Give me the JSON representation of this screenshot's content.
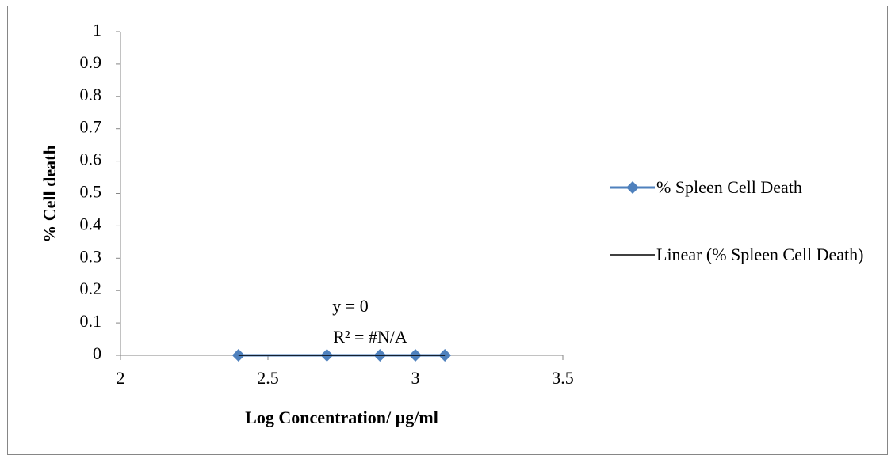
{
  "chart_data": {
    "type": "scatter",
    "x_label": "Log Concentration/ µg/ml",
    "y_label": "% Cell death",
    "series": [
      {
        "name": "% Spleen Cell Death",
        "color": "#4f81bd",
        "marker": "diamond",
        "x": [
          2.4,
          2.7,
          2.88,
          3.0,
          3.1
        ],
        "values": [
          0,
          0,
          0,
          0,
          0
        ]
      },
      {
        "name": "Linear (% Spleen Cell Death)",
        "color": "#000000",
        "marker": "none",
        "x": [
          2.4,
          3.1
        ],
        "values": [
          0,
          0
        ]
      }
    ],
    "annotations": [
      "y = 0",
      "R² = #N/A"
    ],
    "xlim": [
      2,
      3.5
    ],
    "xticks": [
      2,
      2.5,
      3,
      3.5
    ],
    "ylim": [
      0,
      1
    ],
    "yticks": [
      0,
      0.1,
      0.2,
      0.3,
      0.4,
      0.5,
      0.6,
      0.7,
      0.8,
      0.9,
      1
    ],
    "grid": false,
    "legend": "right"
  }
}
